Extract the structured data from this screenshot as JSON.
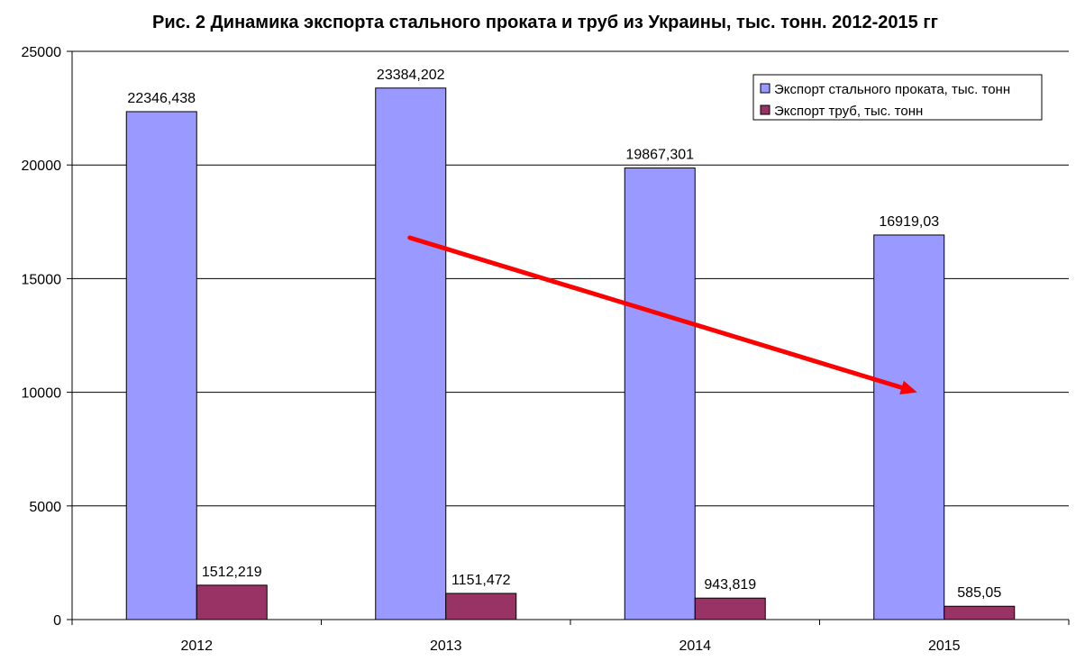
{
  "chart_data": {
    "type": "bar",
    "title": "Рис. 2 Динамика экспорта стального проката и труб из Украины, тыс. тонн. 2012-2015 гг",
    "xlabel": "",
    "ylabel": "",
    "categories": [
      "2012",
      "2013",
      "2014",
      "2015"
    ],
    "series": [
      {
        "name": "Экспорт стального проката, тыс. тонн",
        "values": [
          22346.438,
          23384.202,
          19867.301,
          16919.03
        ],
        "labels": [
          "22346,438",
          "23384,202",
          "19867,301",
          "16919,03"
        ],
        "color": "#9999FF"
      },
      {
        "name": "Экспорт труб, тыс. тонн",
        "values": [
          1512.219,
          1151.472,
          943.819,
          585.05
        ],
        "labels": [
          "1512,219",
          "1151,472",
          "943,819",
          "585,05"
        ],
        "color": "#993366"
      }
    ],
    "ylim": [
      0,
      25000
    ],
    "yticks": [
      0,
      5000,
      10000,
      15000,
      20000,
      25000
    ],
    "grid": true,
    "legend_position": "top-right",
    "annotation": {
      "type": "trend-arrow",
      "color": "#FF0000",
      "from": {
        "category": "2013",
        "value": 16800
      },
      "to": {
        "category": "2015",
        "value": 10000
      }
    }
  }
}
